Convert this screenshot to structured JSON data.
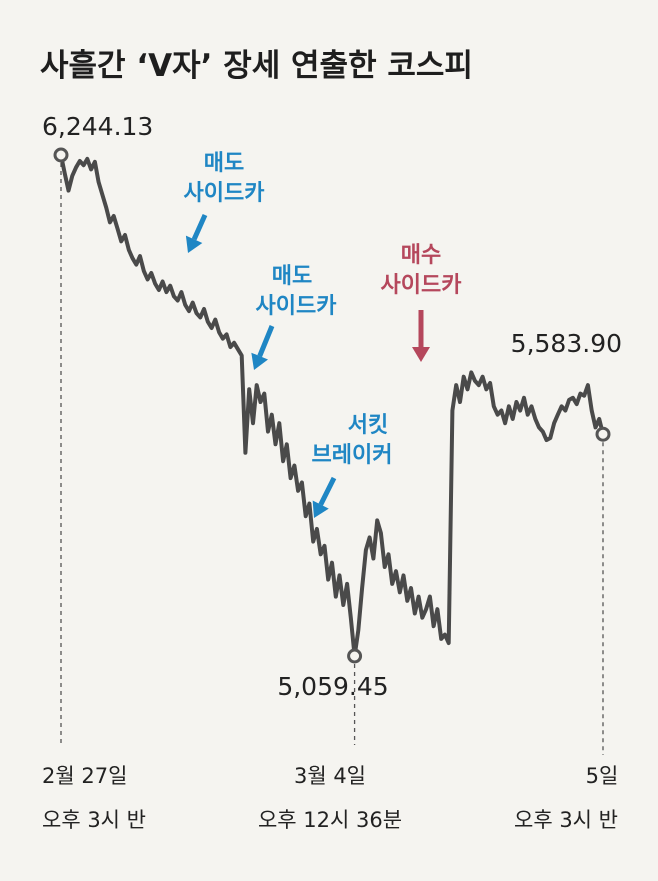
{
  "chart_data": {
    "type": "line",
    "title": "사흘간 ‘V자’ 장세 연출한 코스피",
    "series": [
      {
        "values": [
          6244.13,
          6200,
          6160,
          6195,
          6215,
          6230,
          6220,
          6235,
          6210,
          6228,
          6180,
          6150,
          6120,
          6085,
          6100,
          6070,
          6040,
          6055,
          6020,
          6000,
          5985,
          6005,
          5970,
          5950,
          5965,
          5940,
          5925,
          5945,
          5920,
          5935,
          5910,
          5900,
          5920,
          5890,
          5875,
          5895,
          5870,
          5860,
          5880,
          5850,
          5835,
          5855,
          5825,
          5810,
          5820,
          5790,
          5800,
          5785,
          5770,
          5540,
          5690,
          5610,
          5700,
          5660,
          5680,
          5590,
          5630,
          5560,
          5610,
          5520,
          5560,
          5480,
          5510,
          5450,
          5470,
          5390,
          5420,
          5330,
          5360,
          5300,
          5320,
          5240,
          5280,
          5200,
          5250,
          5180,
          5230,
          5150,
          5059.45,
          5120,
          5220,
          5310,
          5340,
          5290,
          5380,
          5350,
          5270,
          5300,
          5230,
          5260,
          5210,
          5250,
          5190,
          5220,
          5160,
          5200,
          5150,
          5170,
          5200,
          5130,
          5170,
          5100,
          5110,
          5090,
          5640,
          5700,
          5660,
          5720,
          5690,
          5730,
          5710,
          5700,
          5720,
          5690,
          5705,
          5650,
          5630,
          5640,
          5610,
          5650,
          5620,
          5660,
          5640,
          5670,
          5630,
          5650,
          5620,
          5600,
          5590,
          5570,
          5575,
          5610,
          5630,
          5650,
          5640,
          5665,
          5670,
          5655,
          5680,
          5675,
          5700,
          5640,
          5600,
          5620,
          5583.9
        ]
      }
    ],
    "start_label": "6,244.13",
    "low_label": "5,059.45",
    "end_label": "5,583.90",
    "x_ticks": [
      {
        "line1": "2월 27일",
        "line2": "오후 3시 반"
      },
      {
        "line1": "3월 4일",
        "line2": "오후 12시 36분"
      },
      {
        "line1": "5일",
        "line2": "오후 3시 반"
      }
    ],
    "annotations": [
      {
        "line1": "매도",
        "line2": "사이드카",
        "color": "#1f86c4"
      },
      {
        "line1": "매도",
        "line2": "사이드카",
        "color": "#1f86c4"
      },
      {
        "line1": "서킷",
        "line2": "브레이커",
        "color": "#1f86c4"
      },
      {
        "line1": "매수",
        "line2": "사이드카",
        "color": "#b5475c"
      }
    ],
    "colors": {
      "line": "#4a4a4a",
      "blue": "#1f86c4",
      "red": "#b5475c"
    }
  }
}
